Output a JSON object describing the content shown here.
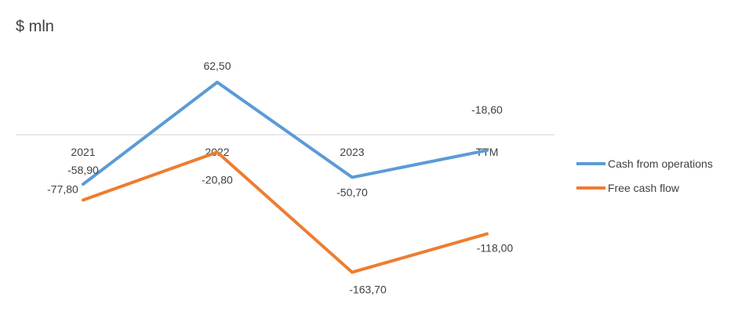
{
  "chart_data": {
    "type": "line",
    "title": "$ mln",
    "categories": [
      "2021",
      "2022",
      "2023",
      "TTM"
    ],
    "series": [
      {
        "name": "Cash from operations",
        "values": [
          -58.9,
          62.5,
          -50.7,
          -18.6
        ],
        "labels": [
          "-58,90",
          "62,50",
          "-50,70",
          "-18,60"
        ],
        "color": "#5B9BD5"
      },
      {
        "name": "Free cash flow",
        "values": [
          -77.8,
          -20.8,
          -163.7,
          -118.0
        ],
        "labels": [
          "-77,80",
          "-20,80",
          "-163,70",
          "-118,00"
        ],
        "color": "#ED7D31"
      }
    ],
    "ylim": [
      -180,
      80
    ],
    "grid": false,
    "legend": "right"
  }
}
